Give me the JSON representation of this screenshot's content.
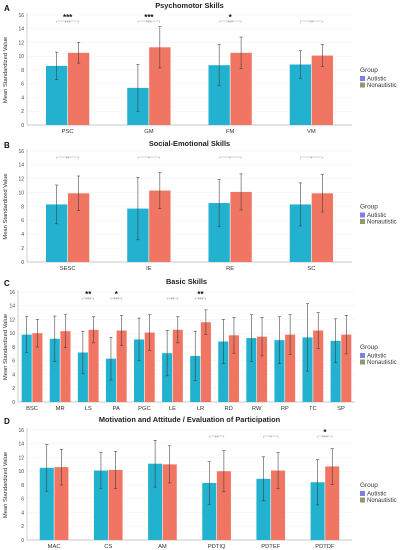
{
  "chart_data": [
    {
      "panel": "A",
      "type": "bar",
      "title": "Psychomotor Skills",
      "ylabel": "Mean Standardized Value",
      "ylim": [
        0,
        16
      ],
      "yticks": [
        0,
        2,
        4,
        6,
        8,
        10,
        12,
        14,
        16
      ],
      "categories": [
        "PSC",
        "GM",
        "FM",
        "VM"
      ],
      "series": [
        {
          "name": "Autistic",
          "values": [
            8.6,
            5.4,
            8.7,
            8.8
          ],
          "errors": [
            2.0,
            3.4,
            3.0,
            2.0
          ]
        },
        {
          "name": "Nonautistic",
          "values": [
            10.5,
            11.3,
            10.5,
            10.1
          ],
          "errors": [
            1.5,
            3.0,
            2.3,
            1.6
          ]
        }
      ],
      "significance": [
        {
          "category": "PSC",
          "top": "***",
          "bottom": "***"
        },
        {
          "category": "GM",
          "top": "***",
          "bottom": "***"
        },
        {
          "category": "FM",
          "top": "*",
          "bottom": "***"
        },
        {
          "category": "VM",
          "top": "",
          "bottom": "**"
        }
      ],
      "legend": {
        "title": "Group",
        "position": "right"
      }
    },
    {
      "panel": "B",
      "type": "bar",
      "title": "Social-Emotional Skills",
      "ylabel": "Mean Standardized Value",
      "ylim": [
        0,
        16
      ],
      "yticks": [
        0,
        2,
        4,
        6,
        8,
        10,
        12,
        14,
        16
      ],
      "categories": [
        "SESC",
        "IE",
        "RE",
        "SC"
      ],
      "series": [
        {
          "name": "Autistic",
          "values": [
            8.3,
            7.7,
            8.5,
            8.3
          ],
          "errors": [
            2.8,
            4.5,
            3.4,
            3.1
          ]
        },
        {
          "name": "Nonautistic",
          "values": [
            9.9,
            10.3,
            10.1,
            9.9
          ],
          "errors": [
            2.5,
            2.6,
            2.6,
            2.7
          ]
        }
      ],
      "significance": [
        {
          "category": "SESC",
          "top": "",
          "bottom": "**"
        },
        {
          "category": "IE",
          "top": "",
          "bottom": "*"
        },
        {
          "category": "RE",
          "top": "",
          "bottom": "*"
        },
        {
          "category": "SC",
          "top": "",
          "bottom": "*"
        }
      ],
      "legend": {
        "title": "Group",
        "position": "right"
      }
    },
    {
      "panel": "C",
      "type": "bar",
      "title": "Basic Skills",
      "ylabel": "Mean Standardized Value",
      "ylim": [
        0,
        16
      ],
      "yticks": [
        0,
        2,
        4,
        6,
        8,
        10,
        12,
        14,
        16
      ],
      "categories": [
        "BSC",
        "MR",
        "LS",
        "PA",
        "PGC",
        "LE",
        "LR",
        "RD",
        "RW",
        "RP",
        "TC",
        "SP"
      ],
      "series": [
        {
          "name": "Autistic",
          "values": [
            9.8,
            9.2,
            7.2,
            6.3,
            9.1,
            7.1,
            6.7,
            8.8,
            9.3,
            9.0,
            9.4,
            8.9
          ],
          "errors": [
            2.6,
            3.3,
            3.1,
            3.1,
            3.1,
            3.3,
            3.6,
            3.2,
            3.4,
            3.4,
            4.9,
            3.2
          ]
        },
        {
          "name": "Nonautistic",
          "values": [
            10.0,
            10.3,
            10.5,
            10.4,
            10.1,
            10.5,
            11.6,
            9.7,
            9.5,
            9.8,
            10.4,
            9.8
          ],
          "errors": [
            2.0,
            2.4,
            1.9,
            2.2,
            2.6,
            1.9,
            1.8,
            2.6,
            2.8,
            2.9,
            2.6,
            2.8
          ]
        }
      ],
      "significance": [
        {
          "category": "LS",
          "top": "**",
          "bottom": "***"
        },
        {
          "category": "PA",
          "top": "*",
          "bottom": "***"
        },
        {
          "category": "LE",
          "top": "",
          "bottom": "**"
        },
        {
          "category": "LR",
          "top": "**",
          "bottom": "***"
        }
      ],
      "legend": {
        "title": "Group",
        "position": "right"
      }
    },
    {
      "panel": "D",
      "type": "bar",
      "title": "Motivation and Attitude / Evaluation of Participation",
      "ylabel": "Mean Standardized Value",
      "ylim": [
        0,
        16
      ],
      "yticks": [
        0,
        2,
        4,
        6,
        8,
        10,
        12,
        14,
        16
      ],
      "categories": [
        "MAC",
        "CS",
        "AM",
        "PDTIQ",
        "PDTEF",
        "PDTDF"
      ],
      "series": [
        {
          "name": "Autistic",
          "values": [
            10.5,
            10.1,
            11.1,
            8.3,
            8.9,
            8.4
          ],
          "errors": [
            3.4,
            2.6,
            3.4,
            3.1,
            3.2,
            3.3
          ]
        },
        {
          "name": "Nonautistic",
          "values": [
            10.6,
            10.2,
            11.0,
            10.0,
            10.1,
            10.7
          ],
          "errors": [
            2.6,
            2.7,
            2.7,
            3.0,
            2.6,
            2.6
          ]
        }
      ],
      "significance": [
        {
          "category": "PDTIQ",
          "top": "",
          "bottom": "**"
        },
        {
          "category": "PDTEF",
          "top": "",
          "bottom": "*"
        },
        {
          "category": "PDTDF",
          "top": "*",
          "bottom": "***"
        }
      ],
      "legend": {
        "title": "Group",
        "position": "right"
      }
    }
  ],
  "colors": {
    "autistic_bar": "#22b2cf",
    "nonautistic_bar": "#f07562",
    "autistic_legend": "#7b7fea",
    "nonautistic_legend": "#8e9b6a",
    "error_bar": "#3a3a3a",
    "axis": "#bbbbbb",
    "grid": "#f1f1f1"
  }
}
